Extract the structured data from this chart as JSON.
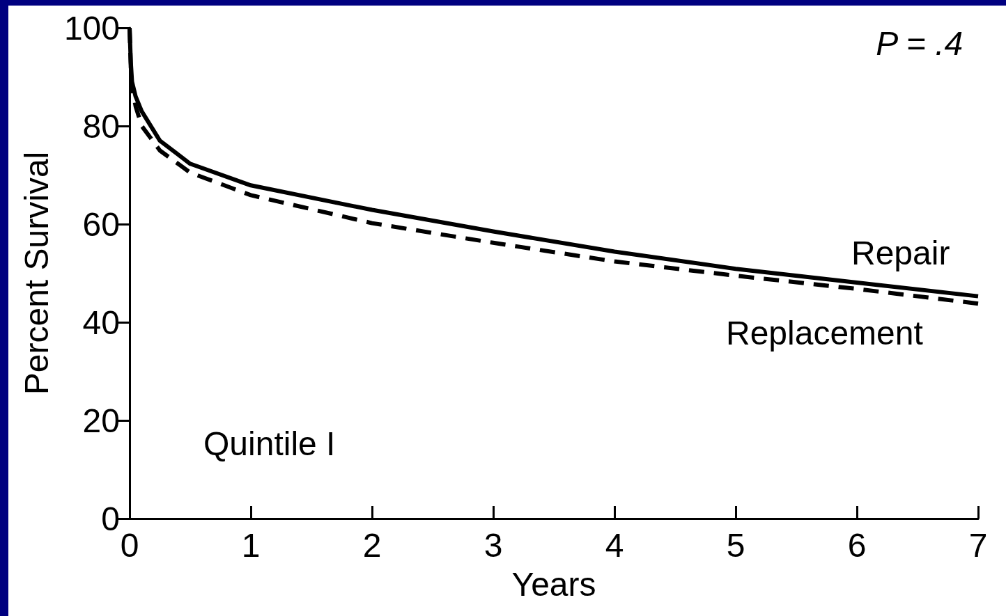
{
  "chart_data": {
    "type": "line",
    "xlabel": "Years",
    "ylabel": "Percent Survival",
    "annotations": [
      "P = .4",
      "Quintile I"
    ],
    "xlim": [
      0,
      7
    ],
    "xticks": [
      0,
      1,
      2,
      3,
      4,
      5,
      6,
      7
    ],
    "ylim": [
      0,
      100
    ],
    "yticks": [
      0,
      20,
      40,
      60,
      80,
      100
    ],
    "grid": false,
    "legend": false,
    "marker": "none",
    "series": [
      {
        "name": "Repair",
        "color": "#000000",
        "line_style": "solid",
        "x": [
          0,
          0.01,
          0.02,
          0.05,
          0.1,
          0.25,
          0.5,
          1,
          2,
          3,
          4,
          5,
          6,
          7
        ],
        "values": [
          100,
          93,
          89,
          86,
          83,
          77,
          72.3,
          67.9,
          62.9,
          58.5,
          54.4,
          50.9,
          48.1,
          45.3
        ]
      },
      {
        "name": "Replacement",
        "color": "#000000",
        "line_style": "dashed",
        "x": [
          0,
          0.01,
          0.02,
          0.05,
          0.1,
          0.25,
          0.5,
          1,
          2,
          3,
          4,
          5,
          6,
          7
        ],
        "values": [
          100,
          92,
          88,
          84,
          80,
          75,
          70.5,
          65.9,
          60.2,
          56.2,
          52.4,
          49.5,
          46.8,
          43.8
        ]
      }
    ]
  }
}
